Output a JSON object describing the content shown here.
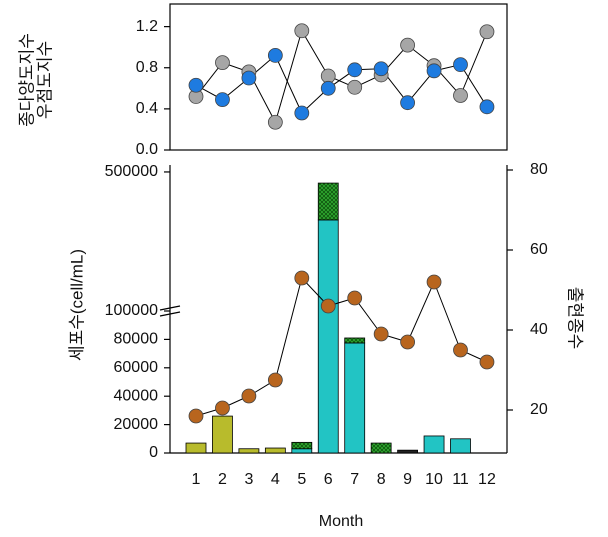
{
  "chart_data": [
    {
      "type": "line",
      "ylabel": [
        "종다양도지수",
        "우점도지수"
      ],
      "ylim": [
        0,
        1.42
      ],
      "yticks": [
        {
          "value": 0,
          "label": "0.0"
        },
        0.4,
        0.8,
        1.2
      ],
      "series": [
        {
          "color": "#a6a6a6",
          "values": [
            0.52,
            0.85,
            0.76,
            0.27,
            1.16,
            0.72,
            0.61,
            0.73,
            1.02,
            0.82,
            0.53,
            1.15
          ]
        },
        {
          "color": "#1e7be0",
          "values": [
            0.63,
            0.49,
            0.7,
            0.92,
            0.36,
            0.6,
            0.78,
            0.79,
            0.46,
            0.77,
            0.83,
            0.42
          ]
        }
      ]
    },
    {
      "type": "bar",
      "stacked": true,
      "xlabel": "Month",
      "ylabel": "세포수(cell/mL)",
      "y2label": "출현종수",
      "categories": [
        "1",
        "2",
        "3",
        "4",
        "5",
        "6",
        "7",
        "8",
        "9",
        "10",
        "11",
        "12"
      ],
      "ylim": [
        0,
        520000
      ],
      "ybreak": 100000,
      "yticks": [
        0,
        20000,
        40000,
        60000,
        80000,
        100000,
        500000
      ],
      "y2lim": [
        9.25,
        81.25
      ],
      "y2ticks": [
        20,
        40,
        60,
        80
      ],
      "series": [
        {
          "color": "#b8bb2c",
          "values": [
            7000,
            26000,
            3000,
            3500,
            0,
            0,
            0,
            0,
            0,
            0,
            0,
            0
          ]
        },
        {
          "color": "#22c4c4",
          "values": [
            0,
            0,
            0,
            0,
            3000,
            362000,
            77500,
            0,
            0,
            12000,
            10000,
            0
          ]
        },
        {
          "color": "#2fa82f",
          "hatch": true,
          "values": [
            0,
            0,
            0,
            0,
            4500,
            106000,
            3500,
            7000,
            0,
            0,
            0,
            0
          ]
        },
        {
          "color": "#222222",
          "values": [
            0,
            0,
            0,
            0,
            0,
            0,
            0,
            0,
            2000,
            0,
            0,
            0
          ]
        },
        {
          "type": "line",
          "axis": "y2",
          "color": "#b8651e",
          "values": [
            18.5,
            20.5,
            23.5,
            27.5,
            53,
            46,
            48,
            39,
            37,
            52,
            35,
            32
          ]
        }
      ]
    }
  ]
}
